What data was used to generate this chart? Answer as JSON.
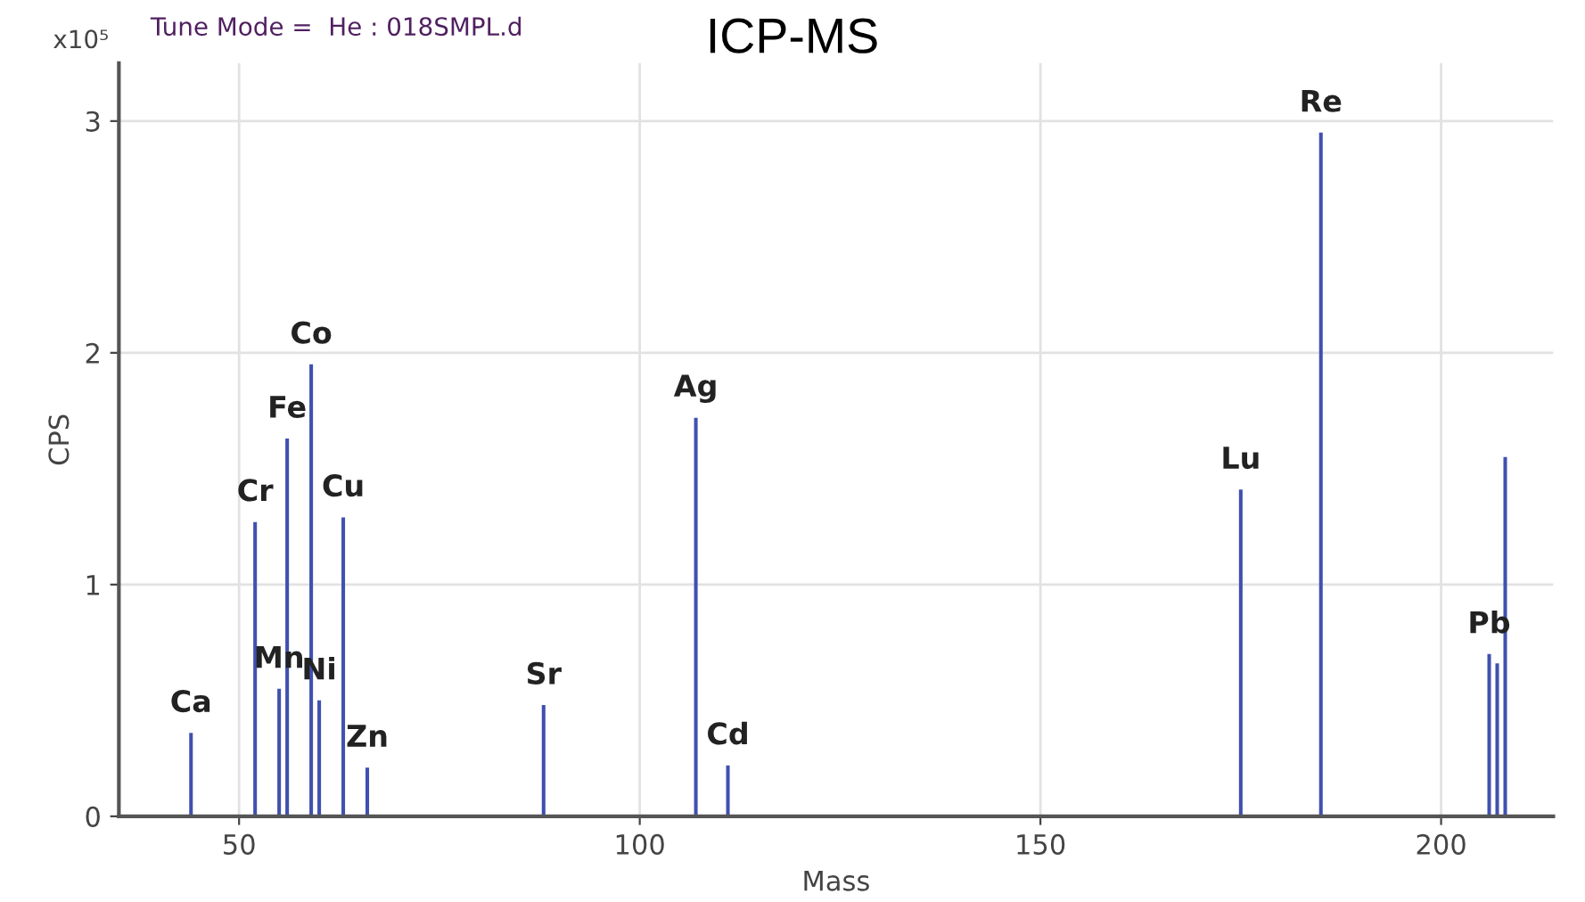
{
  "chart_data": {
    "type": "bar",
    "title": "ICP-MS",
    "subtitle": "Tune Mode =  He : 018SMPL.d",
    "xlabel": "Mass",
    "ylabel": "CPS",
    "x": [
      44,
      52,
      55,
      56,
      59,
      60,
      63,
      66,
      88,
      107,
      111,
      175,
      185,
      206,
      207,
      208
    ],
    "values": [
      0.36,
      1.27,
      0.55,
      1.63,
      1.95,
      0.5,
      1.29,
      0.21,
      0.48,
      1.72,
      0.22,
      1.41,
      2.95,
      0.7,
      0.66,
      1.55
    ],
    "color": "#4050b0",
    "annotations": [
      "x10⁵",
      {
        "text": "Ca",
        "x": 44,
        "y": 0.36
      },
      {
        "text": "Cr",
        "x": 52,
        "y": 1.27
      },
      {
        "text": "Mn",
        "x": 55,
        "y": 0.55
      },
      {
        "text": "Fe",
        "x": 56,
        "y": 1.63
      },
      {
        "text": "Co",
        "x": 59,
        "y": 1.95
      },
      {
        "text": "Ni",
        "x": 60,
        "y": 0.5
      },
      {
        "text": "Cu",
        "x": 63,
        "y": 1.29
      },
      {
        "text": "Zn",
        "x": 66,
        "y": 0.21
      },
      {
        "text": "Sr",
        "x": 88,
        "y": 0.48
      },
      {
        "text": "Ag",
        "x": 107,
        "y": 1.72
      },
      {
        "text": "Cd",
        "x": 111,
        "y": 0.22
      },
      {
        "text": "Lu",
        "x": 175,
        "y": 1.41
      },
      {
        "text": "Re",
        "x": 185,
        "y": 2.95
      },
      {
        "text": "Pb",
        "x": 206,
        "y": 0.7
      }
    ],
    "xlim": [
      35,
      214
    ],
    "xticks": [
      50,
      100,
      150,
      200
    ],
    "ylim": [
      0,
      3.25
    ],
    "yticks": [
      0,
      1,
      2,
      3
    ],
    "grid": true
  }
}
